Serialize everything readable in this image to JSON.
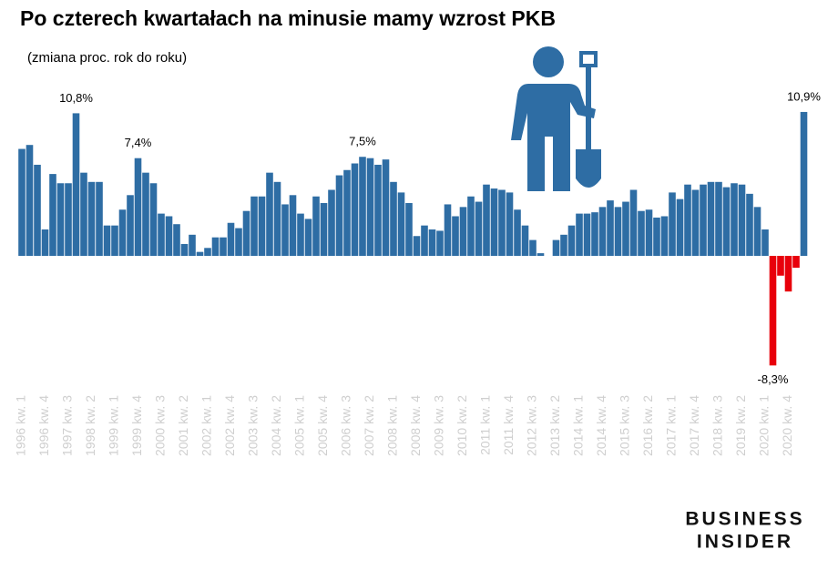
{
  "chart_data": {
    "type": "bar",
    "title": "Po czterech kwartałach na minusie mamy wzrost PKB",
    "subtitle": "(zmiana proc. rok do roku)",
    "brand": [
      "BUSINESS",
      "INSIDER"
    ],
    "categories": [
      "1996 kw. 1",
      null,
      null,
      "1996 kw. 4",
      null,
      null,
      "1997 kw. 3",
      null,
      null,
      "1998 kw. 2",
      null,
      null,
      "1999 kw. 1",
      null,
      null,
      "1999 kw. 4",
      null,
      null,
      "2000 kw. 3",
      null,
      null,
      "2001 kw. 2",
      null,
      null,
      "2002 kw. 1",
      null,
      null,
      "2002 kw. 4",
      null,
      null,
      "2003 kw. 3",
      null,
      null,
      "2004 kw. 2",
      null,
      null,
      "2005 kw. 1",
      null,
      null,
      "2005 kw. 4",
      null,
      null,
      "2006 kw. 3",
      null,
      null,
      "2007 kw. 2",
      null,
      null,
      "2008 kw. 1",
      null,
      null,
      "2008 kw. 4",
      null,
      null,
      "2009 kw. 3",
      null,
      null,
      "2010 kw. 2",
      null,
      null,
      "2011 kw. 1",
      null,
      null,
      "2011 kw. 4",
      null,
      null,
      "2012 kw. 3",
      null,
      null,
      "2013 kw. 2",
      null,
      null,
      "2014 kw. 1",
      null,
      null,
      "2014 kw. 4",
      null,
      null,
      "2015 kw. 3",
      null,
      null,
      "2016 kw. 2",
      null,
      null,
      "2017 kw. 1",
      null,
      null,
      "2017 kw. 4",
      null,
      null,
      "2018 kw. 3",
      null,
      null,
      "2019 kw. 2",
      null,
      null,
      "2020 kw. 1",
      null,
      null,
      "2020 kw. 4",
      null,
      null
    ],
    "values": [
      8.1,
      8.4,
      6.9,
      2.0,
      6.2,
      5.5,
      5.5,
      10.8,
      6.3,
      5.6,
      5.6,
      2.3,
      2.3,
      3.5,
      4.6,
      7.4,
      6.3,
      5.5,
      3.2,
      3.0,
      2.4,
      0.9,
      1.6,
      0.3,
      0.6,
      1.4,
      1.4,
      2.5,
      2.1,
      3.4,
      4.5,
      4.5,
      6.3,
      5.6,
      3.9,
      4.6,
      3.2,
      2.8,
      4.5,
      4.0,
      5.0,
      6.1,
      6.5,
      7.0,
      7.5,
      7.4,
      6.9,
      7.3,
      5.6,
      4.8,
      4.0,
      1.5,
      2.3,
      2.0,
      1.9,
      3.9,
      3.0,
      3.7,
      4.5,
      4.1,
      5.4,
      5.1,
      5.0,
      4.8,
      3.5,
      2.3,
      1.2,
      0.2,
      0.0,
      1.2,
      1.6,
      2.3,
      3.2,
      3.2,
      3.3,
      3.7,
      4.2,
      3.7,
      4.1,
      5.0,
      3.4,
      3.5,
      2.9,
      3.0,
      4.8,
      4.3,
      5.4,
      5.0,
      5.4,
      5.6,
      5.6,
      5.2,
      5.5,
      5.4,
      4.7,
      3.7,
      2.0,
      -8.3,
      -1.5,
      -2.7,
      -0.9,
      10.9
    ],
    "value_labels": [
      null,
      null,
      null,
      null,
      null,
      null,
      null,
      "10,8%",
      null,
      null,
      null,
      null,
      null,
      null,
      null,
      "7,4%",
      null,
      null,
      null,
      null,
      null,
      null,
      null,
      null,
      null,
      null,
      null,
      null,
      null,
      null,
      null,
      null,
      null,
      null,
      null,
      null,
      null,
      null,
      null,
      null,
      null,
      null,
      null,
      null,
      "7,5%",
      null,
      null,
      null,
      null,
      null,
      null,
      null,
      null,
      null,
      null,
      null,
      null,
      null,
      null,
      null,
      null,
      null,
      null,
      null,
      null,
      null,
      null,
      null,
      null,
      null,
      null,
      null,
      null,
      null,
      null,
      null,
      null,
      null,
      null,
      null,
      null,
      null,
      null,
      null,
      null,
      null,
      null,
      null,
      null,
      null,
      null,
      null,
      null,
      null,
      null,
      null,
      null,
      "-8,3%",
      null,
      null,
      null,
      "10,9%"
    ],
    "color": "#2e6da4",
    "negative_color": "#e8000b",
    "ylim": [
      -8.5,
      11.2
    ]
  }
}
